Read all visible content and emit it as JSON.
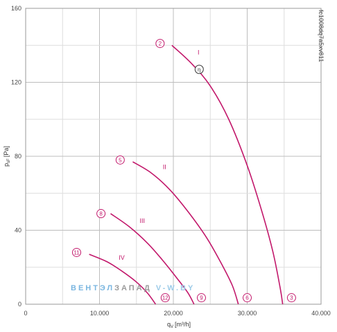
{
  "chart_data": {
    "type": "line",
    "title": "",
    "xlabel_main": "q",
    "xlabel_sub": "V",
    "xlabel_unit": "[m³/h]",
    "ylabel_main": "p",
    "ylabel_sub": "sF",
    "ylabel_unit": "[Pa]",
    "xlim": [
      0,
      40000
    ],
    "ylim": [
      0,
      160
    ],
    "x_ticks": [
      0,
      10000,
      20000,
      30000,
      40000
    ],
    "x_tick_labels": [
      "0",
      "10.000",
      "20.000",
      "30.000",
      "40.000"
    ],
    "y_ticks": [
      0,
      40,
      80,
      120,
      160
    ],
    "y_tick_labels": [
      "0",
      "40",
      "80",
      "120",
      "160"
    ],
    "grid": true,
    "model_code": "fc1008dq7a5xv811",
    "series": [
      {
        "name": "I",
        "color": "#c2186b",
        "points": [
          [
            19800,
            140
          ],
          [
            22500,
            130
          ],
          [
            25000,
            118
          ],
          [
            27500,
            100
          ],
          [
            30000,
            75
          ],
          [
            32000,
            50
          ],
          [
            33500,
            28
          ],
          [
            34500,
            8
          ],
          [
            34800,
            0
          ]
        ]
      },
      {
        "name": "II",
        "color": "#c2186b",
        "points": [
          [
            14500,
            77
          ],
          [
            17000,
            71
          ],
          [
            19500,
            62
          ],
          [
            22000,
            50
          ],
          [
            24500,
            36
          ],
          [
            26500,
            22
          ],
          [
            28000,
            10
          ],
          [
            28800,
            0
          ]
        ]
      },
      {
        "name": "III",
        "color": "#c2186b",
        "points": [
          [
            11500,
            49
          ],
          [
            14000,
            42
          ],
          [
            16500,
            33
          ],
          [
            18500,
            24
          ],
          [
            20500,
            14
          ],
          [
            22000,
            6
          ],
          [
            22800,
            0
          ]
        ]
      },
      {
        "name": "IV",
        "color": "#c2186b",
        "points": [
          [
            8600,
            27
          ],
          [
            11000,
            23
          ],
          [
            13000,
            18
          ],
          [
            15000,
            12
          ],
          [
            16500,
            6
          ],
          [
            17600,
            0
          ]
        ]
      }
    ],
    "markers": [
      {
        "label": "2",
        "x": 18200,
        "y": 141,
        "style": "magenta"
      },
      {
        "label": "η",
        "x": 23500,
        "y": 127,
        "style": "dark"
      },
      {
        "label": "5",
        "x": 12800,
        "y": 78,
        "style": "magenta"
      },
      {
        "label": "8",
        "x": 10200,
        "y": 49,
        "style": "magenta"
      },
      {
        "label": "11",
        "x": 6900,
        "y": 28,
        "style": "magenta"
      },
      {
        "label": "12",
        "x": 18900,
        "y": 3.5,
        "style": "magenta"
      },
      {
        "label": "9",
        "x": 23800,
        "y": 3.5,
        "style": "magenta"
      },
      {
        "label": "6",
        "x": 30000,
        "y": 3.5,
        "style": "magenta"
      },
      {
        "label": "3",
        "x": 36000,
        "y": 3.5,
        "style": "magenta"
      }
    ],
    "series_labels": [
      {
        "text": "I",
        "x": 23400,
        "y": 135
      },
      {
        "text": "II",
        "x": 18800,
        "y": 73
      },
      {
        "text": "III",
        "x": 15800,
        "y": 44
      },
      {
        "text": "IV",
        "x": 13000,
        "y": 24
      }
    ]
  },
  "watermark": {
    "part1": "ВЕНТЭЛ",
    "part2": "ЗАПАД",
    "part3": "V-W.BY",
    "color1": "#7ab6e0",
    "color2": "#9a9a9a",
    "color3": "#9ccbe8"
  }
}
